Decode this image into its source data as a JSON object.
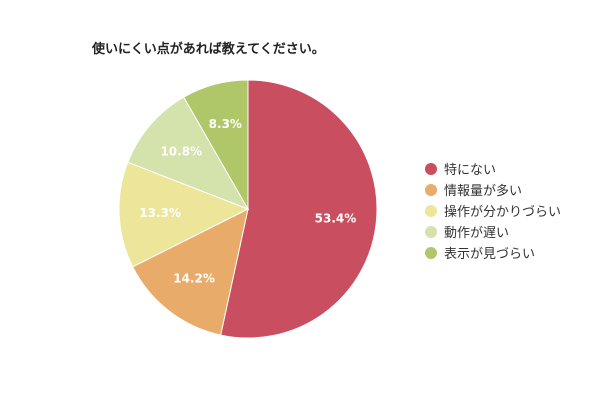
{
  "chart_data": {
    "type": "pie",
    "title": "使いにくい点があれば教えてください。",
    "categories": [
      "特にない",
      "情報量が多い",
      "操作が分かりづらい",
      "動作が遅い",
      "表示が見づらい"
    ],
    "values": [
      53.4,
      14.2,
      13.3,
      10.8,
      8.3
    ],
    "value_labels": [
      "53.4%",
      "14.2%",
      "13.3%",
      "10.8%",
      "8.3%"
    ],
    "colors": [
      "#c94e5f",
      "#e8ab6a",
      "#ede59a",
      "#d4e2ab",
      "#afc768"
    ],
    "legend": "right"
  }
}
